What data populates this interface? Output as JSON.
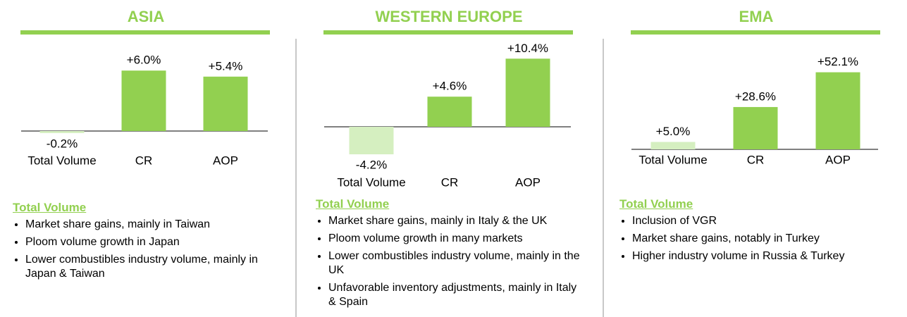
{
  "chart_data": [
    {
      "type": "bar",
      "title": "ASIA",
      "categories": [
        "Total Volume",
        "CR",
        "AOP"
      ],
      "values": [
        -0.2,
        6.0,
        5.4
      ],
      "value_labels": [
        "-0.2%",
        "+6.0%",
        "+5.4%"
      ],
      "colors": [
        "#d5efc0",
        "#92d050",
        "#92d050"
      ]
    },
    {
      "type": "bar",
      "title": "WESTERN EUROPE",
      "categories": [
        "Total Volume",
        "CR",
        "AOP"
      ],
      "values": [
        -4.2,
        4.6,
        10.4
      ],
      "value_labels": [
        "-4.2%",
        "+4.6%",
        "+10.4%"
      ],
      "colors": [
        "#d5efc0",
        "#92d050",
        "#92d050"
      ]
    },
    {
      "type": "bar",
      "title": "EMA",
      "categories": [
        "Total Volume",
        "CR",
        "AOP"
      ],
      "values": [
        5.0,
        28.6,
        52.1
      ],
      "value_labels": [
        "+5.0%",
        "+28.6%",
        "+52.1%"
      ],
      "colors": [
        "#d5efc0",
        "#92d050",
        "#92d050"
      ]
    }
  ],
  "notes": [
    {
      "heading": "Total Volume",
      "bullets": [
        "Market share gains, mainly in Taiwan",
        "Ploom volume growth in Japan",
        "Lower combustibles industry volume, mainly in Japan & Taiwan"
      ]
    },
    {
      "heading": "Total Volume",
      "bullets": [
        "Market share gains, mainly in Italy & the UK",
        "Ploom volume growth in many markets",
        "Lower combustibles industry volume, mainly in the UK",
        "Unfavorable inventory adjustments, mainly in Italy & Spain"
      ]
    },
    {
      "heading": "Total Volume",
      "bullets": [
        "Inclusion of VGR",
        "Market share gains, notably in Turkey",
        "Higher industry volume in Russia & Turkey"
      ]
    }
  ]
}
